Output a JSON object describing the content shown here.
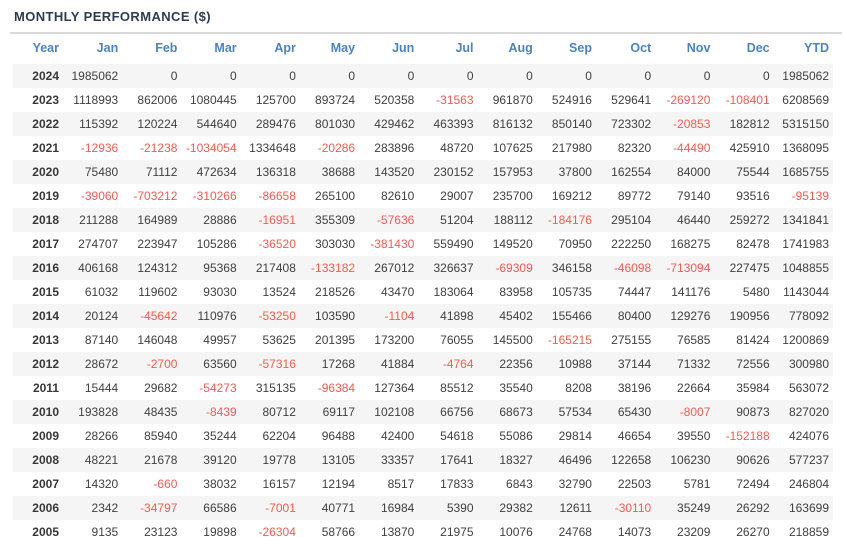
{
  "title": "MONTHLY PERFORMANCE ($)",
  "colors": {
    "title": "#2e3d4f",
    "header_text": "#4e82c4",
    "positive_value": "#3f3f3f",
    "negative_value": "#fa5a52",
    "row_stripe": "#f5f5f5",
    "divider": "#d9d9d9"
  },
  "table": {
    "columns": [
      "Year",
      "Jan",
      "Feb",
      "Mar",
      "Apr",
      "May",
      "Jun",
      "Jul",
      "Aug",
      "Sep",
      "Oct",
      "Nov",
      "Dec",
      "YTD"
    ],
    "rows": [
      {
        "year": "2024",
        "values": [
          1985062,
          0,
          0,
          0,
          0,
          0,
          0,
          0,
          0,
          0,
          0,
          0,
          1985062
        ]
      },
      {
        "year": "2023",
        "values": [
          1118993,
          862006,
          1080445,
          125700,
          893724,
          520358,
          -31563,
          961870,
          524916,
          529641,
          -269120,
          -108401,
          6208569
        ]
      },
      {
        "year": "2022",
        "values": [
          115392,
          120224,
          544640,
          289476,
          801030,
          429462,
          463393,
          816132,
          850140,
          723302,
          -20853,
          182812,
          5315150
        ]
      },
      {
        "year": "2021",
        "values": [
          -12936,
          -21238,
          -1034054,
          1334648,
          -20286,
          283896,
          48720,
          107625,
          217980,
          82320,
          -44490,
          425910,
          1368095
        ]
      },
      {
        "year": "2020",
        "values": [
          75480,
          71112,
          472634,
          136318,
          38688,
          143520,
          230152,
          157953,
          37800,
          162554,
          84000,
          75544,
          1685755
        ]
      },
      {
        "year": "2019",
        "values": [
          -39060,
          -703212,
          -310266,
          -86658,
          265100,
          82610,
          29007,
          235700,
          169212,
          89772,
          79140,
          93516,
          -95139
        ]
      },
      {
        "year": "2018",
        "values": [
          211288,
          164989,
          28886,
          -16951,
          355309,
          -57636,
          51204,
          188112,
          -184176,
          295104,
          46440,
          259272,
          1341841
        ]
      },
      {
        "year": "2017",
        "values": [
          274707,
          223947,
          105286,
          -36520,
          303030,
          -381430,
          559490,
          149520,
          70950,
          222250,
          168275,
          82478,
          1741983
        ]
      },
      {
        "year": "2016",
        "values": [
          406168,
          124312,
          95368,
          217408,
          -133182,
          267012,
          326637,
          -69309,
          346158,
          -46098,
          -713094,
          227475,
          1048855
        ]
      },
      {
        "year": "2015",
        "values": [
          61032,
          119602,
          93030,
          13524,
          218526,
          43470,
          183064,
          83958,
          105735,
          74447,
          141176,
          5480,
          1143044
        ]
      },
      {
        "year": "2014",
        "values": [
          20124,
          -45642,
          110976,
          -53250,
          103590,
          -1104,
          41898,
          45402,
          155466,
          80400,
          129276,
          190956,
          778092
        ]
      },
      {
        "year": "2013",
        "values": [
          87140,
          146048,
          49957,
          53625,
          201395,
          173200,
          76055,
          145500,
          -165215,
          275155,
          76585,
          81424,
          1200869
        ]
      },
      {
        "year": "2012",
        "values": [
          28672,
          -2700,
          63560,
          -57316,
          17268,
          41884,
          -4764,
          22356,
          10988,
          37144,
          71332,
          72556,
          300980
        ]
      },
      {
        "year": "2011",
        "values": [
          15444,
          29682,
          -54273,
          315135,
          -96384,
          127364,
          85512,
          35540,
          8208,
          38196,
          22664,
          35984,
          563072
        ]
      },
      {
        "year": "2010",
        "values": [
          193828,
          48435,
          -8439,
          80712,
          69117,
          102108,
          66756,
          68673,
          57534,
          65430,
          -8007,
          90873,
          827020
        ]
      },
      {
        "year": "2009",
        "values": [
          28266,
          85940,
          35244,
          62204,
          96488,
          42400,
          54618,
          55086,
          29814,
          46654,
          39550,
          -152188,
          424076
        ]
      },
      {
        "year": "2008",
        "values": [
          48221,
          21678,
          39120,
          19778,
          13105,
          33357,
          17641,
          18327,
          46496,
          122658,
          106230,
          90626,
          577237
        ]
      },
      {
        "year": "2007",
        "values": [
          14320,
          -660,
          38032,
          16157,
          12194,
          8517,
          17833,
          6843,
          32790,
          22503,
          5781,
          72494,
          246804
        ]
      },
      {
        "year": "2006",
        "values": [
          2342,
          -34797,
          66586,
          -7001,
          40771,
          16984,
          5390,
          29382,
          12611,
          -30110,
          35249,
          26292,
          163699
        ]
      },
      {
        "year": "2005",
        "values": [
          9135,
          23123,
          19898,
          -26304,
          58766,
          13870,
          21975,
          10076,
          24768,
          14073,
          23209,
          26270,
          218859
        ]
      }
    ]
  }
}
